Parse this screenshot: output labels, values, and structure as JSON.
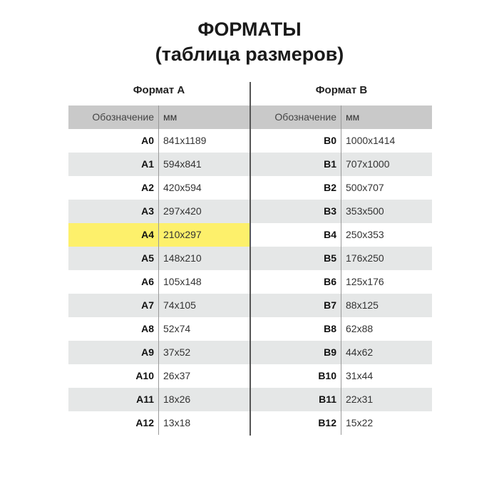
{
  "title": {
    "line1": "ФОРМАТЫ",
    "line2": "(таблица размеров)"
  },
  "highlight_color": "#fdf06b",
  "table_a": {
    "caption": "Формат A",
    "headers": [
      "Обозначение",
      "мм"
    ],
    "highlight": "A4",
    "rows": [
      [
        "A0",
        "841x1189"
      ],
      [
        "A1",
        "594x841"
      ],
      [
        "A2",
        "420x594"
      ],
      [
        "A3",
        "297x420"
      ],
      [
        "A4",
        "210x297"
      ],
      [
        "A5",
        "148x210"
      ],
      [
        "A6",
        "105x148"
      ],
      [
        "A7",
        "74x105"
      ],
      [
        "A8",
        "52x74"
      ],
      [
        "A9",
        "37x52"
      ],
      [
        "A10",
        "26x37"
      ],
      [
        "A11",
        "18x26"
      ],
      [
        "A12",
        "13x18"
      ]
    ]
  },
  "table_b": {
    "caption": "Формат B",
    "headers": [
      "Обозначение",
      "мм"
    ],
    "rows": [
      [
        "B0",
        "1000x1414"
      ],
      [
        "B1",
        "707x1000"
      ],
      [
        "B2",
        "500x707"
      ],
      [
        "B3",
        "353x500"
      ],
      [
        "B4",
        "250x353"
      ],
      [
        "B5",
        "176x250"
      ],
      [
        "B6",
        "125x176"
      ],
      [
        "B7",
        "88x125"
      ],
      [
        "B8",
        "62x88"
      ],
      [
        "B9",
        "44x62"
      ],
      [
        "B10",
        "31x44"
      ],
      [
        "B11",
        "22x31"
      ],
      [
        "B12",
        "15x22"
      ]
    ]
  }
}
